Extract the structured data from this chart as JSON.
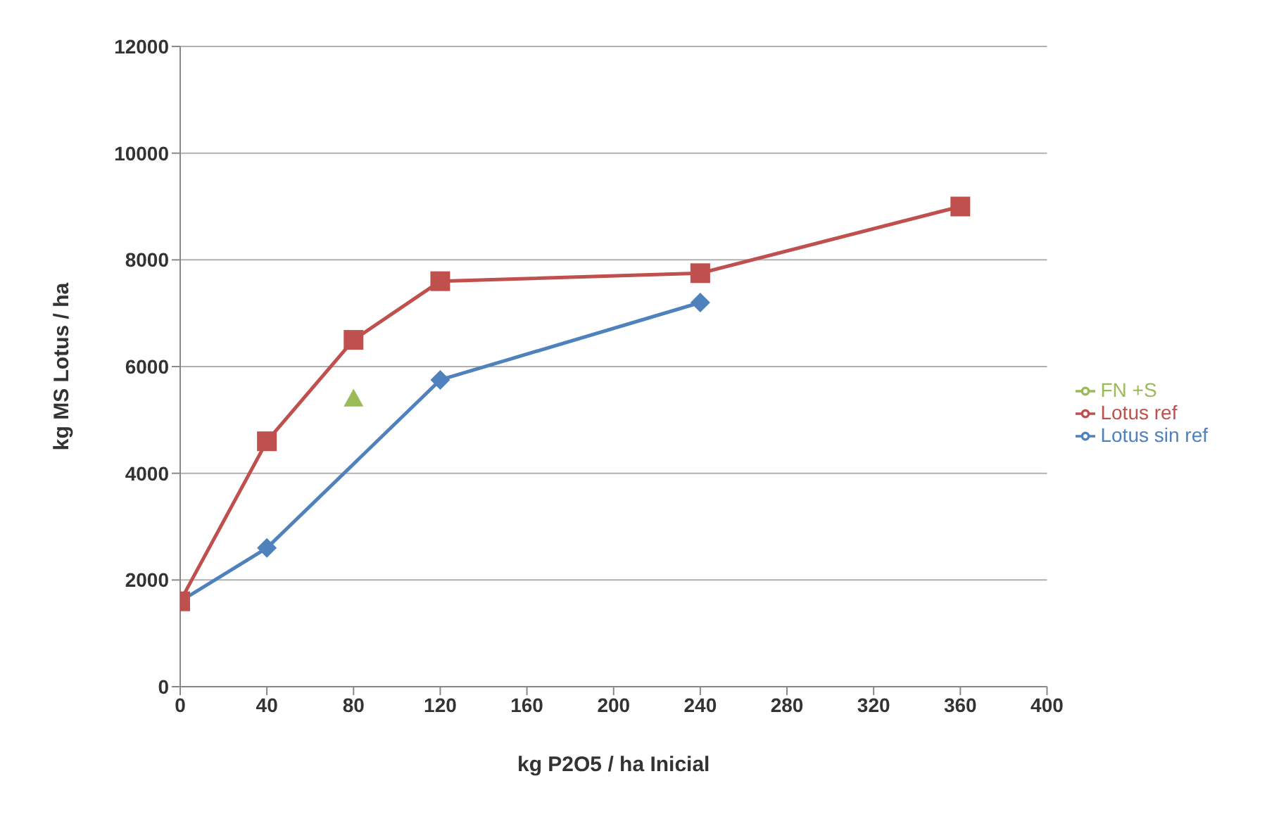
{
  "chart_data": {
    "type": "line",
    "xlabel": "kg P2O5 / ha   Inicial",
    "ylabel": "kg MS  Lotus / ha",
    "xlim": [
      0,
      400
    ],
    "xticks": [
      0,
      40,
      80,
      120,
      160,
      200,
      240,
      280,
      320,
      360,
      400
    ],
    "ylim": [
      0,
      12000
    ],
    "yticks": [
      0,
      2000,
      4000,
      6000,
      8000,
      10000,
      12000
    ],
    "grid": "y",
    "legend": "right",
    "series": [
      {
        "name": "Lotus sin ref",
        "color": "#4f81bd",
        "marker": "diamond",
        "x": [
          0,
          40,
          120,
          240
        ],
        "values": [
          1600,
          2600,
          5750,
          7200
        ]
      },
      {
        "name": "Lotus ref",
        "color": "#c0504d",
        "marker": "square",
        "x": [
          0,
          40,
          80,
          120,
          240,
          360
        ],
        "values": [
          1600,
          4600,
          6500,
          7600,
          7750,
          9000
        ]
      },
      {
        "name": "FN +S",
        "color": "#9bbb59",
        "marker": "triangle",
        "x": [
          80
        ],
        "values": [
          5400
        ]
      }
    ]
  }
}
